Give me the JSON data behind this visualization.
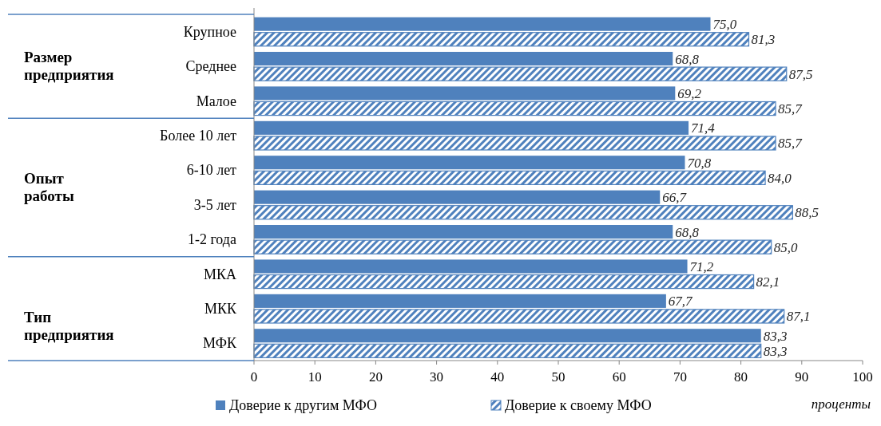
{
  "chart_data": {
    "type": "bar",
    "orientation": "horizontal",
    "categories": [
      "Крупное",
      "Среднее",
      "Малое",
      "Более 10 лет",
      "6-10 лет",
      "3-5 лет",
      "1-2 года",
      "МКА",
      "МКК",
      "МФК"
    ],
    "series": [
      {
        "name": "Доверие к другим МФО",
        "color": "#4f81bd",
        "values": [
          75.0,
          68.8,
          69.2,
          71.4,
          70.8,
          66.7,
          68.8,
          71.2,
          67.7,
          83.3
        ],
        "value_labels": [
          "75,0",
          "68,8",
          "69,2",
          "71,4",
          "70,8",
          "66,7",
          "68,8",
          "71,2",
          "67,7",
          "83,3"
        ]
      },
      {
        "name": "Доверие к своему МФО",
        "color": "#4f81bd",
        "values": [
          81.3,
          87.5,
          85.7,
          85.7,
          84.0,
          88.5,
          85.0,
          82.1,
          87.1,
          83.3
        ],
        "value_labels": [
          "81,3",
          "87,5",
          "85,7",
          "85,7",
          "84,0",
          "88,5",
          "85,0",
          "82,1",
          "87,1",
          "83,3"
        ]
      }
    ],
    "xlim": [
      0,
      100
    ],
    "xticks": [
      0,
      10,
      20,
      30,
      40,
      50,
      60,
      70,
      80,
      90,
      100
    ],
    "xlabel": "проценты",
    "grid": false,
    "legend": "bottom",
    "annotations": [
      "Размер предприятия",
      "Опыт работы",
      "Тип предприятия"
    ]
  }
}
